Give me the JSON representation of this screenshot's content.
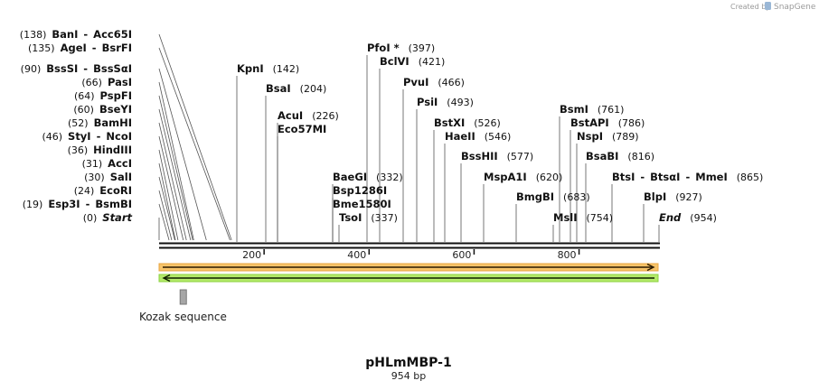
{
  "credit": {
    "created_by": "Created by",
    "brand": "SnapGene"
  },
  "plasmid": {
    "name": "pHLmMBP-1",
    "length_label": "954 bp",
    "length": 954
  },
  "axis": {
    "ticks": [
      {
        "value": 200,
        "label": "200"
      },
      {
        "value": 400,
        "label": "400"
      },
      {
        "value": 600,
        "label": "600"
      },
      {
        "value": 800,
        "label": "800"
      }
    ]
  },
  "features": {
    "kozak": {
      "label": "Kozak sequence",
      "start": 40,
      "end": 51
    }
  },
  "sites": [
    {
      "pos": 0,
      "labels": [
        "(0)",
        "Start"
      ],
      "italic": true,
      "side": "left"
    },
    {
      "pos": 19,
      "labels": [
        "(19)",
        "Esp3I",
        "-",
        "BsmBI"
      ],
      "side": "left"
    },
    {
      "pos": 24,
      "labels": [
        "(24)",
        "EcoRI"
      ],
      "side": "left"
    },
    {
      "pos": 30,
      "labels": [
        "(30)",
        "SalI"
      ],
      "side": "left"
    },
    {
      "pos": 31,
      "labels": [
        "(31)",
        "AccI"
      ],
      "side": "left"
    },
    {
      "pos": 36,
      "labels": [
        "(36)",
        "HindIII"
      ],
      "side": "left"
    },
    {
      "pos": 46,
      "labels": [
        "(46)",
        "StyI",
        "-",
        "NcoI"
      ],
      "side": "left"
    },
    {
      "pos": 52,
      "labels": [
        "(52)",
        "BamHI"
      ],
      "side": "left"
    },
    {
      "pos": 60,
      "labels": [
        "(60)",
        "BseYI"
      ],
      "side": "left"
    },
    {
      "pos": 64,
      "labels": [
        "(64)",
        "PspFI"
      ],
      "side": "left"
    },
    {
      "pos": 66,
      "labels": [
        "(66)",
        "PasI"
      ],
      "side": "left"
    },
    {
      "pos": 90,
      "labels": [
        "(90)",
        "BssSI",
        "-",
        "BssSαI"
      ],
      "side": "left"
    },
    {
      "pos": 135,
      "labels": [
        "(135)",
        "AgeI",
        "-",
        "BsrFI"
      ],
      "side": "left"
    },
    {
      "pos": 138,
      "labels": [
        "(138)",
        "BanI",
        "-",
        "Acc65I"
      ],
      "side": "left"
    },
    {
      "pos": 142,
      "labels": [
        "KpnI",
        "(142)"
      ],
      "side": "right"
    },
    {
      "pos": 204,
      "labels": [
        "BsaI",
        "(204)"
      ],
      "side": "right"
    },
    {
      "pos": 226,
      "labels": [
        "AcuI",
        "(226)"
      ],
      "side": "right"
    },
    {
      "pos": 226,
      "labels": [
        "Eco57MI"
      ],
      "side": "right"
    },
    {
      "pos": 332,
      "labels": [
        "BaeGI",
        "(332)"
      ],
      "side": "right"
    },
    {
      "pos": 332,
      "labels": [
        "Bsp1286I"
      ],
      "side": "right"
    },
    {
      "pos": 332,
      "labels": [
        "Bme1580I"
      ],
      "side": "right"
    },
    {
      "pos": 337,
      "labels": [
        "TsoI",
        "(337)"
      ],
      "side": "right"
    },
    {
      "pos": 397,
      "labels": [
        "PfoI *",
        "(397)"
      ],
      "side": "right"
    },
    {
      "pos": 421,
      "labels": [
        "BclVI",
        "(421)"
      ],
      "side": "right"
    },
    {
      "pos": 466,
      "labels": [
        "PvuI",
        "(466)"
      ],
      "side": "right"
    },
    {
      "pos": 493,
      "labels": [
        "PsiI",
        "(493)"
      ],
      "side": "right"
    },
    {
      "pos": 526,
      "labels": [
        "BstXI",
        "(526)"
      ],
      "side": "right"
    },
    {
      "pos": 546,
      "labels": [
        "HaeII",
        "(546)"
      ],
      "side": "right"
    },
    {
      "pos": 577,
      "labels": [
        "BssHII",
        "(577)"
      ],
      "side": "right"
    },
    {
      "pos": 620,
      "labels": [
        "MspA1I",
        "(620)"
      ],
      "side": "right"
    },
    {
      "pos": 683,
      "labels": [
        "BmgBI",
        "(683)"
      ],
      "side": "right"
    },
    {
      "pos": 754,
      "labels": [
        "MslI",
        "(754)"
      ],
      "side": "right"
    },
    {
      "pos": 761,
      "labels": [
        "BsmI",
        "(761)"
      ],
      "side": "right"
    },
    {
      "pos": 786,
      "labels": [
        "BstAPI",
        "(786)"
      ],
      "side": "right"
    },
    {
      "pos": 789,
      "labels": [
        "NspI",
        "(789)"
      ],
      "side": "right"
    },
    {
      "pos": 816,
      "labels": [
        "BsaBI",
        "(816)"
      ],
      "side": "right"
    },
    {
      "pos": 865,
      "labels": [
        "BtsI",
        "-",
        "BtsαI",
        "-",
        "MmeI",
        "(865)"
      ],
      "side": "right"
    },
    {
      "pos": 927,
      "labels": [
        "BlpI",
        "(927)"
      ],
      "side": "right"
    },
    {
      "pos": 954,
      "labels": [
        "End",
        "(954)"
      ],
      "italic": true,
      "side": "right"
    }
  ],
  "colors": {
    "forward_fill": "#f7b34a",
    "forward_border": "#e59a2f",
    "reverse_fill": "#9fe04a",
    "reverse_border": "#7ac22f",
    "kozak": "#a9a9a9",
    "backbone": "#111111",
    "leader": "#555555"
  }
}
